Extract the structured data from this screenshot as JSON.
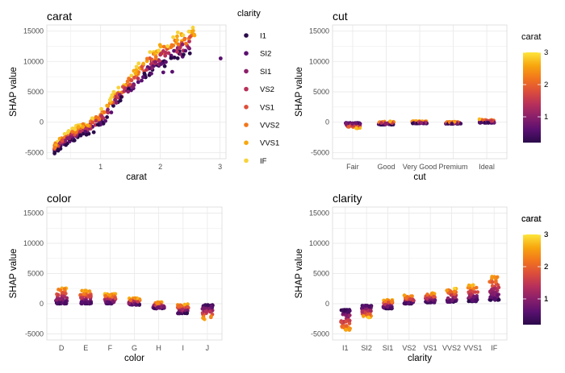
{
  "chart_data": [
    {
      "type": "scatter",
      "title": "carat",
      "xlabel": "carat",
      "ylabel": "SHAP value",
      "x_ticks": [
        "1",
        "2",
        "3"
      ],
      "y_ticks": [
        "-5000",
        "0",
        "5000",
        "10000",
        "15000"
      ],
      "xlim": [
        0.1,
        3.1
      ],
      "ylim": [
        -6000,
        16000
      ],
      "color_by": "clarity",
      "grid": true,
      "legend": {
        "title": "clarity",
        "position": "right",
        "entries": [
          "I1",
          "SI2",
          "SI1",
          "VS2",
          "VS1",
          "VVS2",
          "VVS1",
          "IF"
        ],
        "colors": [
          "#2a0a4a",
          "#5a1070",
          "#8a1f6a",
          "#b8305a",
          "#dd4f3a",
          "#f2761c",
          "#f7a70e",
          "#f7d33a"
        ]
      },
      "trend": [
        [
          0.23,
          -4200
        ],
        [
          0.4,
          -2800
        ],
        [
          0.6,
          -1600
        ],
        [
          0.9,
          -200
        ],
        [
          1.05,
          1000
        ],
        [
          1.2,
          3200
        ],
        [
          1.5,
          6500
        ],
        [
          1.8,
          9500
        ],
        [
          2.0,
          11000
        ],
        [
          2.3,
          12500
        ],
        [
          2.6,
          13500
        ]
      ],
      "extra_points": [
        [
          3.01,
          10500
        ],
        [
          1.85,
          8000
        ],
        [
          2.05,
          8200
        ],
        [
          2.2,
          8300
        ]
      ]
    },
    {
      "type": "scatter",
      "title": "cut",
      "xlabel": "cut",
      "ylabel": "SHAP value",
      "categories": [
        "Fair",
        "Good",
        "Very Good",
        "Premium",
        "Ideal"
      ],
      "y_ticks": [
        "-5000",
        "0",
        "5000",
        "10000",
        "15000"
      ],
      "ylim": [
        -6000,
        16000
      ],
      "color_by": "carat",
      "grid": true,
      "legend": {
        "title": "carat",
        "position": "right",
        "ticks": [
          "1",
          "2",
          "3"
        ]
      },
      "y_ranges": [
        [
          -1000,
          -100
        ],
        [
          -400,
          150
        ],
        [
          -200,
          200
        ],
        [
          -250,
          100
        ],
        [
          -100,
          500
        ]
      ]
    },
    {
      "type": "scatter",
      "title": "color",
      "xlabel": "color",
      "ylabel": "SHAP value",
      "categories": [
        "D",
        "E",
        "F",
        "G",
        "H",
        "I",
        "J"
      ],
      "y_ticks": [
        "-5000",
        "0",
        "5000",
        "10000",
        "15000"
      ],
      "ylim": [
        -6000,
        16000
      ],
      "color_by": "carat",
      "grid": true,
      "legend": {
        "title": "carat",
        "position": "right",
        "ticks": [
          "1",
          "2",
          "3"
        ]
      },
      "y_ranges": [
        [
          0,
          2800
        ],
        [
          0,
          2200
        ],
        [
          0,
          1700
        ],
        [
          -200,
          1000
        ],
        [
          -800,
          300
        ],
        [
          -1600,
          0
        ],
        [
          -2600,
          -200
        ]
      ]
    },
    {
      "type": "scatter",
      "title": "clarity",
      "xlabel": "clarity",
      "ylabel": "SHAP value",
      "categories": [
        "I1",
        "SI2",
        "SI1",
        "VS2",
        "VS1",
        "VVS2",
        "VVS1",
        "IF"
      ],
      "y_ticks": [
        "-5000",
        "0",
        "5000",
        "10000",
        "15000"
      ],
      "ylim": [
        -6000,
        16000
      ],
      "color_by": "carat",
      "grid": true,
      "legend": {
        "title": "carat",
        "position": "right",
        "ticks": [
          "1",
          "2",
          "3"
        ]
      },
      "y_ranges": [
        [
          -4600,
          -1000
        ],
        [
          -2300,
          -300
        ],
        [
          -800,
          700
        ],
        [
          0,
          1400
        ],
        [
          200,
          1800
        ],
        [
          300,
          2500
        ],
        [
          400,
          3200
        ],
        [
          600,
          4800
        ]
      ]
    }
  ],
  "colorscale": [
    "#2a0a4a",
    "#5a1070",
    "#8a1f6a",
    "#b8305a",
    "#dd4f3a",
    "#f2761c",
    "#f7a70e",
    "#fde53b"
  ],
  "background": "#ffffff",
  "panel_border": "#d9d9d9",
  "grid_color": "#ebebeb"
}
